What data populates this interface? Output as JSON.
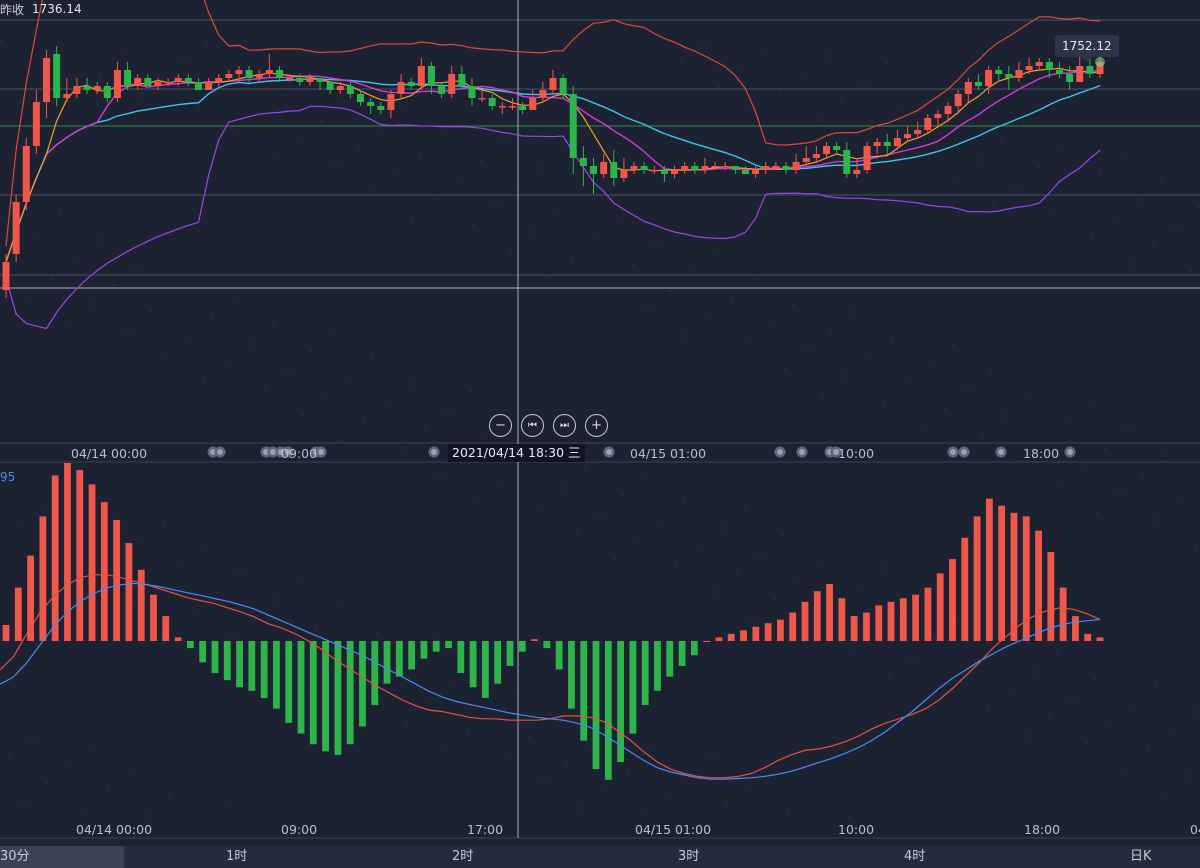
{
  "header": {
    "prev_close_label": "昨收",
    "prev_close_value": "1736.14"
  },
  "price_tag": "1752.12",
  "macd_value": "95",
  "crosshair_date": "2021/04/14 18:30 三",
  "main_xlabels": [
    "04/14 00:00",
    "09:00",
    "04/15 01:00",
    "10:00",
    "18:00"
  ],
  "macd_xlabels": [
    "04/14 00:00",
    "09:00",
    "17:00",
    "04/15 01:00",
    "10:00",
    "18:00",
    "04"
  ],
  "tabs": [
    "30分",
    "1时",
    "2时",
    "3时",
    "4时",
    "日K"
  ],
  "active_tab": "30分",
  "controls": [
    "zoom-out",
    "step-back",
    "step-forward",
    "zoom-in"
  ],
  "colors": {
    "up": "#f0574b",
    "down": "#2db44a",
    "ma5": "#f0a030",
    "ma10": "#d23bd8",
    "ma20": "#3fc3e8",
    "boll_upper": "#d94a3a",
    "boll_lower": "#9b45e8",
    "dif": "#e0553f",
    "dea": "#4a8bf0"
  },
  "chart_data": {
    "type": "candlestick",
    "price_axis": {
      "min": 1685,
      "max": 1760
    },
    "candles": [
      [
        1695,
        1702,
        1704,
        1693
      ],
      [
        1704,
        1717,
        1719,
        1702
      ],
      [
        1717,
        1731,
        1733,
        1715
      ],
      [
        1731,
        1742,
        1745,
        1729
      ],
      [
        1742,
        1753,
        1755,
        1738
      ],
      [
        1754,
        1743,
        1756,
        1741
      ],
      [
        1743,
        1744,
        1748,
        1742
      ],
      [
        1744,
        1746,
        1748,
        1743
      ],
      [
        1746,
        1745,
        1748,
        1744
      ],
      [
        1745,
        1746,
        1747,
        1744
      ],
      [
        1746,
        1743,
        1747,
        1742
      ],
      [
        1743,
        1750,
        1752,
        1742
      ],
      [
        1750,
        1746,
        1752,
        1745
      ],
      [
        1746,
        1748,
        1749,
        1745
      ],
      [
        1748,
        1746,
        1749,
        1746
      ],
      [
        1746,
        1747,
        1748,
        1745
      ],
      [
        1747,
        1747,
        1748,
        1746
      ],
      [
        1747,
        1748,
        1749,
        1746
      ],
      [
        1748,
        1747,
        1749,
        1746
      ],
      [
        1747,
        1745,
        1748,
        1745
      ],
      [
        1745,
        1747,
        1748,
        1745
      ],
      [
        1747,
        1748,
        1749,
        1746
      ],
      [
        1748,
        1749,
        1750,
        1747
      ],
      [
        1749,
        1750,
        1751,
        1747
      ],
      [
        1750,
        1748,
        1751,
        1747
      ],
      [
        1748,
        1749,
        1750,
        1747
      ],
      [
        1749,
        1750,
        1754,
        1748
      ],
      [
        1750,
        1748,
        1751,
        1747
      ],
      [
        1748,
        1748,
        1749,
        1747
      ],
      [
        1748,
        1747,
        1749,
        1746
      ],
      [
        1747,
        1748,
        1749,
        1746
      ],
      [
        1748,
        1747,
        1748,
        1745
      ],
      [
        1747,
        1745,
        1747,
        1744
      ],
      [
        1745,
        1746,
        1747,
        1744
      ],
      [
        1746,
        1744,
        1747,
        1743
      ],
      [
        1744,
        1742,
        1745,
        1741
      ],
      [
        1742,
        1741,
        1743,
        1739
      ],
      [
        1741,
        1740,
        1742,
        1739
      ],
      [
        1740,
        1744,
        1745,
        1738
      ],
      [
        1744,
        1747,
        1749,
        1743
      ],
      [
        1747,
        1746,
        1748,
        1745
      ],
      [
        1746,
        1751,
        1753,
        1745
      ],
      [
        1751,
        1746,
        1752,
        1744
      ],
      [
        1746,
        1744,
        1747,
        1743
      ],
      [
        1744,
        1749,
        1751,
        1743
      ],
      [
        1749,
        1746,
        1751,
        1745
      ],
      [
        1746,
        1743,
        1748,
        1741
      ],
      [
        1743,
        1743,
        1745,
        1742
      ],
      [
        1743,
        1741,
        1744,
        1740
      ],
      [
        1741,
        1741,
        1742,
        1739
      ],
      [
        1741,
        1741,
        1743,
        1740
      ],
      [
        1741,
        1740,
        1742,
        1739
      ],
      [
        1740,
        1743,
        1745,
        1740
      ],
      [
        1743,
        1745,
        1747,
        1742
      ],
      [
        1745,
        1748,
        1750,
        1744
      ],
      [
        1748,
        1744,
        1749,
        1743
      ],
      [
        1744,
        1728,
        1746,
        1724
      ],
      [
        1728,
        1726,
        1731,
        1721
      ],
      [
        1726,
        1724,
        1728,
        1719
      ],
      [
        1724,
        1727,
        1729,
        1723
      ],
      [
        1727,
        1723,
        1730,
        1721
      ],
      [
        1723,
        1725,
        1728,
        1722
      ],
      [
        1725,
        1726,
        1727,
        1724
      ],
      [
        1726,
        1725,
        1727,
        1724
      ],
      [
        1725,
        1725,
        1726,
        1724
      ],
      [
        1725,
        1724,
        1726,
        1722
      ],
      [
        1724,
        1725,
        1726,
        1723
      ],
      [
        1725,
        1726,
        1727,
        1724
      ],
      [
        1726,
        1725,
        1727,
        1724
      ],
      [
        1725,
        1726,
        1728,
        1724
      ],
      [
        1726,
        1726,
        1727,
        1725
      ],
      [
        1726,
        1726,
        1727,
        1725
      ],
      [
        1726,
        1725,
        1726,
        1724
      ],
      [
        1725,
        1724,
        1726,
        1724
      ],
      [
        1724,
        1725,
        1726,
        1723
      ],
      [
        1725,
        1726,
        1727,
        1724
      ],
      [
        1726,
        1726,
        1727,
        1725
      ],
      [
        1726,
        1725,
        1727,
        1724
      ],
      [
        1725,
        1727,
        1729,
        1724
      ],
      [
        1727,
        1728,
        1731,
        1726
      ],
      [
        1728,
        1729,
        1731,
        1727
      ],
      [
        1729,
        1731,
        1732,
        1728
      ],
      [
        1731,
        1730,
        1732,
        1729
      ],
      [
        1730,
        1724,
        1732,
        1723
      ],
      [
        1724,
        1725,
        1728,
        1723
      ],
      [
        1725,
        1731,
        1732,
        1724
      ],
      [
        1731,
        1732,
        1733,
        1729
      ],
      [
        1732,
        1731,
        1734,
        1729
      ],
      [
        1731,
        1733,
        1735,
        1730
      ],
      [
        1733,
        1734,
        1736,
        1732
      ],
      [
        1734,
        1735,
        1737,
        1733
      ],
      [
        1735,
        1738,
        1739,
        1734
      ],
      [
        1738,
        1739,
        1740,
        1736
      ],
      [
        1739,
        1741,
        1742,
        1737
      ],
      [
        1741,
        1744,
        1745,
        1739
      ],
      [
        1744,
        1747,
        1748,
        1742
      ],
      [
        1747,
        1746,
        1749,
        1745
      ],
      [
        1746,
        1750,
        1751,
        1744
      ],
      [
        1750,
        1749,
        1751,
        1747
      ],
      [
        1749,
        1748,
        1751,
        1745
      ],
      [
        1748,
        1750,
        1752,
        1747
      ],
      [
        1750,
        1751,
        1753,
        1749
      ],
      [
        1751,
        1752,
        1753,
        1750
      ],
      [
        1752,
        1750,
        1753,
        1748
      ],
      [
        1750,
        1749,
        1752,
        1748
      ],
      [
        1749,
        1747,
        1751,
        1745
      ],
      [
        1747,
        1751,
        1756,
        1747
      ],
      [
        1751,
        1749,
        1756,
        1748
      ],
      [
        1749,
        1752,
        1757,
        1748
      ]
    ],
    "macd": {
      "hist": [
        9,
        30,
        48,
        70,
        93,
        100,
        96,
        88,
        78,
        68,
        55,
        40,
        26,
        14,
        2,
        -4,
        -12,
        -18,
        -22,
        -26,
        -28,
        -32,
        -38,
        -46,
        -52,
        -58,
        -62,
        -64,
        -58,
        -48,
        -36,
        -24,
        -20,
        -16,
        -10,
        -6,
        -4,
        -18,
        -26,
        -32,
        -24,
        -14,
        -6,
        1,
        -4,
        -16,
        -38,
        -56,
        -72,
        -78,
        -68,
        -52,
        -36,
        -28,
        -20,
        -14,
        -8,
        0,
        2,
        4,
        6,
        8,
        10,
        12,
        16,
        22,
        28,
        32,
        24,
        14,
        16,
        20,
        22,
        24,
        26,
        30,
        38,
        46,
        58,
        70,
        80,
        76,
        72,
        70,
        62,
        50,
        30,
        14,
        4,
        2
      ],
      "dif": [
        -40,
        -22,
        10,
        40,
        62,
        78,
        88,
        92,
        92,
        88,
        83,
        78,
        72,
        66,
        60,
        56,
        52,
        46,
        40,
        33,
        24,
        18,
        10,
        0,
        -12,
        -26,
        -38,
        -50,
        -62,
        -72,
        -82,
        -90,
        -96,
        -98,
        -102,
        -106,
        -108,
        -108,
        -110,
        -110,
        -110,
        -108,
        -104,
        -104,
        -106,
        -112,
        -124,
        -138,
        -154,
        -168,
        -178,
        -184,
        -188,
        -190,
        -190,
        -188,
        -184,
        -176,
        -166,
        -158,
        -152,
        -150,
        -146,
        -140,
        -132,
        -122,
        -114,
        -108,
        -102,
        -94,
        -82,
        -66,
        -48,
        -30,
        -10,
        6,
        22,
        34,
        42,
        46,
        44,
        38,
        30
      ],
      "dea": [
        -60,
        -50,
        -30,
        -5,
        20,
        40,
        55,
        66,
        74,
        78,
        80,
        78,
        75,
        71,
        67,
        63,
        59,
        55,
        50,
        44,
        36,
        28,
        20,
        12,
        4,
        -4,
        -12,
        -20,
        -30,
        -40,
        -50,
        -60,
        -70,
        -78,
        -84,
        -88,
        -92,
        -96,
        -100,
        -103,
        -106,
        -108,
        -110,
        -114,
        -120,
        -130,
        -142,
        -154,
        -166,
        -176,
        -182,
        -186,
        -190,
        -192,
        -192,
        -191,
        -190,
        -188,
        -185,
        -181,
        -175,
        -169,
        -163,
        -156,
        -148,
        -138,
        -126,
        -112,
        -98,
        -82,
        -66,
        -52,
        -40,
        -28,
        -18,
        -8,
        0,
        8,
        16,
        22,
        26,
        28,
        30
      ]
    }
  }
}
